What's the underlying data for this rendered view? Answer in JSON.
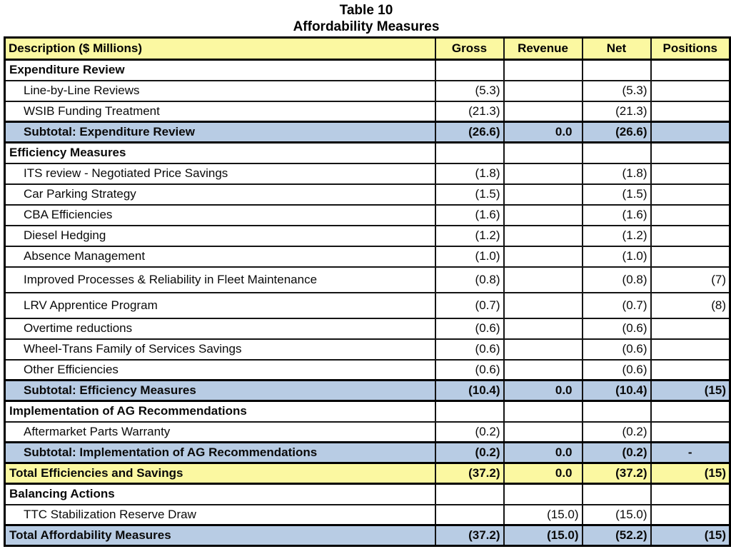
{
  "title": {
    "line1": "Table 10",
    "line2": "Affordability Measures"
  },
  "colors": {
    "header_bg": "#FBF8A1",
    "subtotal_bg": "#B8CCE4",
    "total_yellow_bg": "#FBF8A1",
    "total_blue_bg": "#B8CCE4",
    "border": "#000000",
    "text": "#000000"
  },
  "table": {
    "columns": [
      "Description ($ Millions)",
      "Gross",
      "Revenue",
      "Net",
      "Positions"
    ],
    "rows": [
      {
        "type": "section",
        "desc": "Expenditure Review",
        "gross": "",
        "revenue": "",
        "net": "",
        "positions": ""
      },
      {
        "type": "detail",
        "desc": "Line-by-Line Reviews",
        "gross": "(5.3)",
        "revenue": "",
        "net": "(5.3)",
        "positions": ""
      },
      {
        "type": "detail",
        "desc": "WSIB Funding Treatment",
        "gross": "(21.3)",
        "revenue": "",
        "net": "(21.3)",
        "positions": ""
      },
      {
        "type": "subtotal",
        "desc": "Subtotal: Expenditure Review",
        "gross": "(26.6)",
        "revenue": "0.0",
        "net": "(26.6)",
        "positions": ""
      },
      {
        "type": "section",
        "desc": "Efficiency Measures",
        "gross": "",
        "revenue": "",
        "net": "",
        "positions": ""
      },
      {
        "type": "detail",
        "desc": "ITS review - Negotiated Price Savings",
        "gross": "(1.8)",
        "revenue": "",
        "net": "(1.8)",
        "positions": ""
      },
      {
        "type": "detail",
        "desc": "Car Parking Strategy",
        "gross": "(1.5)",
        "revenue": "",
        "net": "(1.5)",
        "positions": ""
      },
      {
        "type": "detail",
        "desc": "CBA Efficiencies",
        "gross": "(1.6)",
        "revenue": "",
        "net": "(1.6)",
        "positions": ""
      },
      {
        "type": "detail",
        "desc": "Diesel Hedging",
        "gross": "(1.2)",
        "revenue": "",
        "net": "(1.2)",
        "positions": ""
      },
      {
        "type": "detail",
        "desc": "Absence Management",
        "gross": "(1.0)",
        "revenue": "",
        "net": "(1.0)",
        "positions": ""
      },
      {
        "type": "detail-tall",
        "desc": "Improved Processes & Reliability in Fleet Maintenance",
        "gross": "(0.8)",
        "revenue": "",
        "net": "(0.8)",
        "positions": "(7)"
      },
      {
        "type": "detail-tall",
        "desc": "LRV Apprentice Program",
        "gross": "(0.7)",
        "revenue": "",
        "net": "(0.7)",
        "positions": "(8)"
      },
      {
        "type": "detail",
        "desc": "Overtime reductions",
        "gross": "(0.6)",
        "revenue": "",
        "net": "(0.6)",
        "positions": ""
      },
      {
        "type": "detail",
        "desc": "Wheel-Trans Family of Services Savings",
        "gross": "(0.6)",
        "revenue": "",
        "net": "(0.6)",
        "positions": ""
      },
      {
        "type": "detail",
        "desc": "Other Efficiencies",
        "gross": "(0.6)",
        "revenue": "",
        "net": "(0.6)",
        "positions": ""
      },
      {
        "type": "subtotal",
        "desc": "Subtotal: Efficiency Measures",
        "gross": "(10.4)",
        "revenue": "0.0",
        "net": "(10.4)",
        "positions": "(15)"
      },
      {
        "type": "section",
        "desc": "Implementation of AG Recommendations",
        "gross": "",
        "revenue": "",
        "net": "",
        "positions": ""
      },
      {
        "type": "detail",
        "desc": "Aftermarket Parts Warranty",
        "gross": "(0.2)",
        "revenue": "",
        "net": "(0.2)",
        "positions": ""
      },
      {
        "type": "subtotal",
        "desc": "Subtotal: Implementation of AG Recommendations",
        "gross": "(0.2)",
        "revenue": "0.0",
        "net": "(0.2)",
        "positions": "-"
      },
      {
        "type": "total-yellow",
        "desc": "Total Efficiencies and Savings",
        "gross": "(37.2)",
        "revenue": "0.0",
        "net": "(37.2)",
        "positions": "(15)"
      },
      {
        "type": "section",
        "desc": "Balancing Actions",
        "gross": "",
        "revenue": "",
        "net": "",
        "positions": ""
      },
      {
        "type": "detail",
        "desc": "TTC Stabilization Reserve Draw",
        "gross": "",
        "revenue": "(15.0)",
        "net": "(15.0)",
        "positions": ""
      },
      {
        "type": "total-blue",
        "desc": "Total Affordability Measures",
        "gross": "(37.2)",
        "revenue": "(15.0)",
        "net": "(52.2)",
        "positions": "(15)"
      }
    ]
  }
}
